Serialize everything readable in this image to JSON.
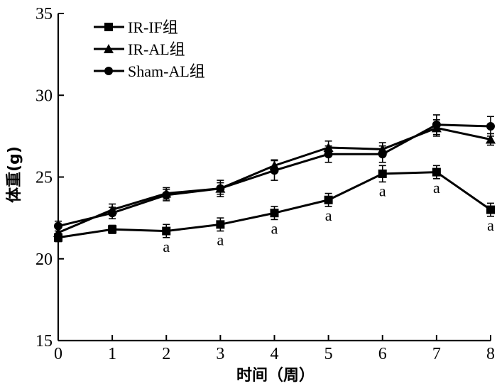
{
  "chart_data": {
    "type": "line",
    "title": "",
    "xlabel": "时间（周）",
    "ylabel": "体重(g)",
    "xlim": [
      0,
      8
    ],
    "ylim": [
      15,
      35
    ],
    "x_ticks": [
      0,
      1,
      2,
      3,
      4,
      5,
      6,
      7,
      8
    ],
    "y_ticks": [
      15,
      20,
      25,
      30,
      35
    ],
    "x": [
      0,
      1,
      2,
      3,
      4,
      5,
      6,
      7,
      8
    ],
    "grid": false,
    "legend_position": "top-left",
    "series": [
      {
        "name": "IR-IF组",
        "marker": "square",
        "values": [
          21.3,
          21.8,
          21.7,
          22.1,
          22.8,
          23.6,
          25.2,
          25.3,
          23.0
        ],
        "error": [
          0.25,
          0.25,
          0.4,
          0.4,
          0.4,
          0.4,
          0.5,
          0.4,
          0.4
        ]
      },
      {
        "name": "IR-AL组",
        "marker": "triangle",
        "values": [
          21.6,
          23.0,
          24.0,
          24.3,
          25.7,
          26.8,
          26.7,
          28.0,
          27.3
        ],
        "error": [
          0.3,
          0.35,
          0.35,
          0.35,
          0.35,
          0.4,
          0.4,
          0.5,
          0.35
        ]
      },
      {
        "name": "Sham-AL组",
        "marker": "circle",
        "values": [
          22.0,
          22.8,
          23.9,
          24.3,
          25.4,
          26.4,
          26.4,
          28.2,
          28.1
        ],
        "error": [
          0.3,
          0.35,
          0.35,
          0.5,
          0.6,
          0.5,
          0.5,
          0.6,
          0.6
        ]
      }
    ],
    "annotations": [
      {
        "x": 2,
        "text": "a"
      },
      {
        "x": 3,
        "text": "a"
      },
      {
        "x": 4,
        "text": "a"
      },
      {
        "x": 5,
        "text": "a"
      },
      {
        "x": 6,
        "text": "a"
      },
      {
        "x": 7,
        "text": "a"
      },
      {
        "x": 8,
        "text": "a"
      }
    ],
    "colors": {
      "line": "#000000",
      "background": "#ffffff"
    }
  }
}
